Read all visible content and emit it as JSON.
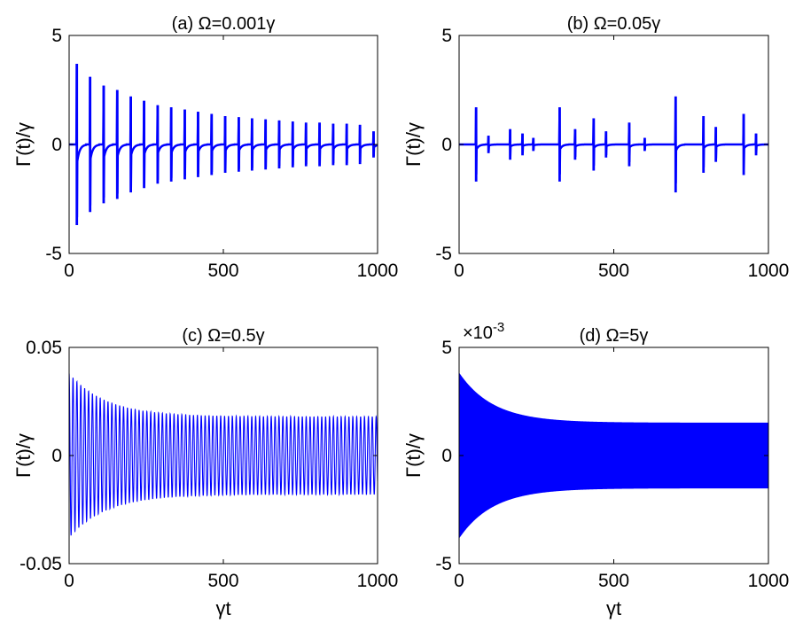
{
  "chart_data": [
    {
      "type": "line",
      "title": "(a) Ω=0.001γ",
      "ylabel": "Γ(t)/γ",
      "xlabel": "",
      "xlim": [
        0,
        1000
      ],
      "ylim": [
        -5,
        5
      ],
      "xticks": [
        "0",
        "500",
        "1000"
      ],
      "yticks": [
        "-5",
        "0",
        "5"
      ],
      "grid": false,
      "color": "#0000ff",
      "series": [
        {
          "style": "spikes",
          "spike_t": [
            25,
            68,
            112,
            156,
            200,
            243,
            287,
            331,
            375,
            418,
            462,
            506,
            550,
            593,
            637,
            681,
            725,
            768,
            812,
            856,
            900,
            943,
            987
          ],
          "spike_amp": [
            3.7,
            3.1,
            2.7,
            2.5,
            2.2,
            2.0,
            1.8,
            1.7,
            1.6,
            1.5,
            1.4,
            1.3,
            1.25,
            1.2,
            1.15,
            1.1,
            1.05,
            1.0,
            1.0,
            0.95,
            0.95,
            0.9,
            0.6
          ],
          "baseline": 0
        }
      ]
    },
    {
      "type": "line",
      "title": "(b) Ω=0.05γ",
      "ylabel": "Γ(t)/γ",
      "xlabel": "",
      "xlim": [
        0,
        1000
      ],
      "ylim": [
        -5,
        5
      ],
      "xticks": [
        "0",
        "500",
        "1000"
      ],
      "yticks": [
        "-5",
        "0",
        "5"
      ],
      "grid": false,
      "color": "#0000ff",
      "series": [
        {
          "style": "spikes",
          "spike_t": [
            55,
            95,
            165,
            205,
            240,
            325,
            375,
            435,
            475,
            550,
            600,
            700,
            790,
            830,
            920,
            960
          ],
          "spike_amp": [
            1.7,
            0.4,
            0.7,
            0.5,
            0.3,
            1.7,
            0.7,
            1.2,
            0.6,
            1.0,
            0.3,
            2.2,
            1.3,
            0.8,
            1.4,
            0.5
          ],
          "baseline": 0
        }
      ]
    },
    {
      "type": "line",
      "title": "(c) Ω=0.5γ",
      "ylabel": "Γ(t)/γ",
      "xlabel": "γt",
      "xlim": [
        0,
        1000
      ],
      "ylim": [
        -0.05,
        0.05
      ],
      "xticks": [
        "0",
        "500",
        "1000"
      ],
      "yticks": [
        "-0.05",
        "0",
        "0.05"
      ],
      "grid": false,
      "color": "#0000ff",
      "series": [
        {
          "style": "envelope",
          "period": 12.6,
          "amp_start": 0.038,
          "amp_end": 0.018,
          "decay": 120
        }
      ]
    },
    {
      "type": "line",
      "title": "(d) Ω=5γ",
      "ylabel": "Γ(t)/γ",
      "xlabel": "γt",
      "xlim": [
        0,
        1000
      ],
      "ylim": [
        -0.005,
        0.005
      ],
      "xticks": [
        "0",
        "500",
        "1000"
      ],
      "yticks": [
        "-5",
        "0",
        "5"
      ],
      "exponent_label": "×10^-3",
      "grid": false,
      "color": "#0000ff",
      "series": [
        {
          "style": "filled",
          "amp_start": 0.0038,
          "amp_end": 0.0015,
          "decay": 110
        }
      ]
    }
  ]
}
